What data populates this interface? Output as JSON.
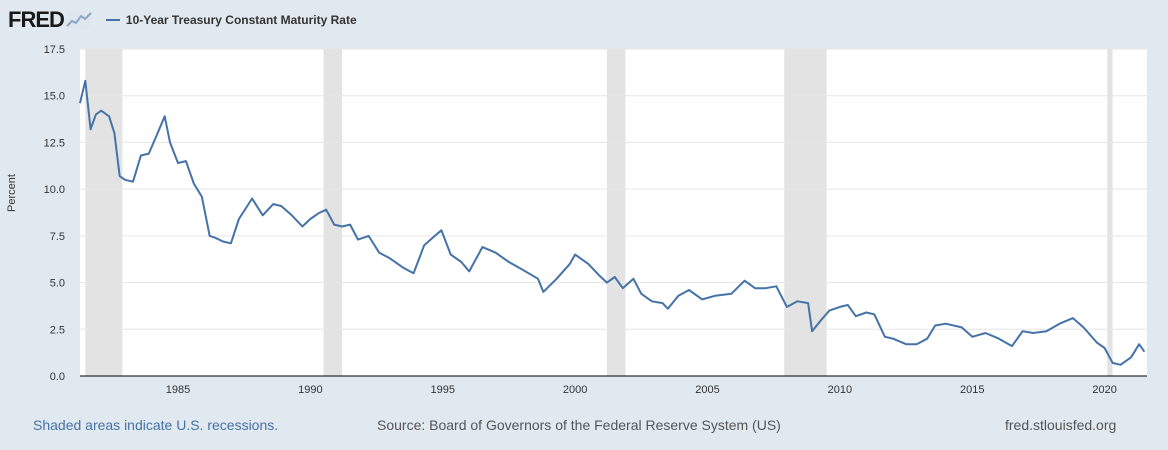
{
  "header": {
    "logo_text": "FRED",
    "legend_label": "10-Year Treasury Constant Maturity Rate"
  },
  "footer": {
    "recession_note": "Shaded areas indicate U.S. recessions.",
    "source": "Source: Board of Governors of the Federal Reserve System (US)",
    "site": "fred.stlouisfed.org"
  },
  "colors": {
    "series": "#4572a7",
    "recession": "#e3e3e3",
    "background": "#e1e9f0",
    "plot": "#ffffff"
  },
  "chart_data": {
    "type": "line",
    "title": "10-Year Treasury Constant Maturity Rate",
    "xlabel": "",
    "ylabel": "Percent",
    "xlim": [
      1981.3,
      2021.6
    ],
    "ylim": [
      0,
      17.5
    ],
    "yticks": [
      "0.0",
      "2.5",
      "5.0",
      "7.5",
      "10.0",
      "12.5",
      "15.0",
      "17.5"
    ],
    "xticks": [
      "1985",
      "1990",
      "1995",
      "2000",
      "2005",
      "2010",
      "2015",
      "2020"
    ],
    "recessions": [
      [
        1981.5,
        1982.9
      ],
      [
        1990.5,
        1991.2
      ],
      [
        2001.2,
        2001.9
      ],
      [
        2007.9,
        2009.5
      ],
      [
        2020.1,
        2020.3
      ]
    ],
    "series": [
      {
        "name": "10-Year Treasury Constant Maturity Rate",
        "x": [
          1981.3,
          1981.5,
          1981.7,
          1981.9,
          1982.1,
          1982.4,
          1982.6,
          1982.8,
          1983.0,
          1983.3,
          1983.6,
          1983.9,
          1984.2,
          1984.5,
          1984.7,
          1985.0,
          1985.3,
          1985.6,
          1985.9,
          1986.2,
          1986.4,
          1986.7,
          1987.0,
          1987.3,
          1987.8,
          1988.2,
          1988.6,
          1988.9,
          1989.3,
          1989.7,
          1990.0,
          1990.3,
          1990.6,
          1990.9,
          1991.2,
          1991.5,
          1991.8,
          1992.2,
          1992.6,
          1993.0,
          1993.5,
          1993.9,
          1994.3,
          1994.7,
          1994.95,
          1995.3,
          1995.7,
          1996.0,
          1996.5,
          1997.0,
          1997.5,
          1998.0,
          1998.6,
          1998.8,
          1999.3,
          1999.8,
          2000.0,
          2000.5,
          2000.9,
          2001.2,
          2001.5,
          2001.8,
          2002.2,
          2002.5,
          2002.9,
          2003.3,
          2003.5,
          2003.9,
          2004.3,
          2004.8,
          2005.3,
          2005.9,
          2006.4,
          2006.8,
          2007.2,
          2007.6,
          2008.0,
          2008.4,
          2008.8,
          2008.95,
          2009.3,
          2009.6,
          2010.0,
          2010.3,
          2010.6,
          2011.0,
          2011.3,
          2011.7,
          2012.0,
          2012.5,
          2012.9,
          2013.3,
          2013.6,
          2014.0,
          2014.6,
          2015.0,
          2015.5,
          2016.0,
          2016.5,
          2016.9,
          2017.3,
          2017.8,
          2018.3,
          2018.8,
          2019.2,
          2019.7,
          2020.0,
          2020.3,
          2020.6,
          2021.0,
          2021.3,
          2021.5
        ],
        "values": [
          14.6,
          15.8,
          13.2,
          14.0,
          14.2,
          13.9,
          13.0,
          10.7,
          10.5,
          10.4,
          11.8,
          11.9,
          12.9,
          13.9,
          12.5,
          11.4,
          11.5,
          10.3,
          9.6,
          7.5,
          7.4,
          7.2,
          7.1,
          8.4,
          9.5,
          8.6,
          9.2,
          9.1,
          8.6,
          8.0,
          8.4,
          8.7,
          8.9,
          8.1,
          8.0,
          8.1,
          7.3,
          7.5,
          6.6,
          6.3,
          5.8,
          5.5,
          7.0,
          7.5,
          7.8,
          6.5,
          6.1,
          5.6,
          6.9,
          6.6,
          6.1,
          5.7,
          5.2,
          4.5,
          5.2,
          6.0,
          6.5,
          6.0,
          5.4,
          5.0,
          5.3,
          4.7,
          5.2,
          4.4,
          4.0,
          3.9,
          3.6,
          4.3,
          4.6,
          4.1,
          4.3,
          4.4,
          5.1,
          4.7,
          4.7,
          4.8,
          3.7,
          4.0,
          3.9,
          2.4,
          3.0,
          3.5,
          3.7,
          3.8,
          3.2,
          3.4,
          3.3,
          2.1,
          2.0,
          1.7,
          1.7,
          2.0,
          2.7,
          2.8,
          2.6,
          2.1,
          2.3,
          2.0,
          1.6,
          2.4,
          2.3,
          2.4,
          2.8,
          3.1,
          2.6,
          1.8,
          1.5,
          0.7,
          0.6,
          1.0,
          1.7,
          1.3
        ]
      }
    ]
  }
}
